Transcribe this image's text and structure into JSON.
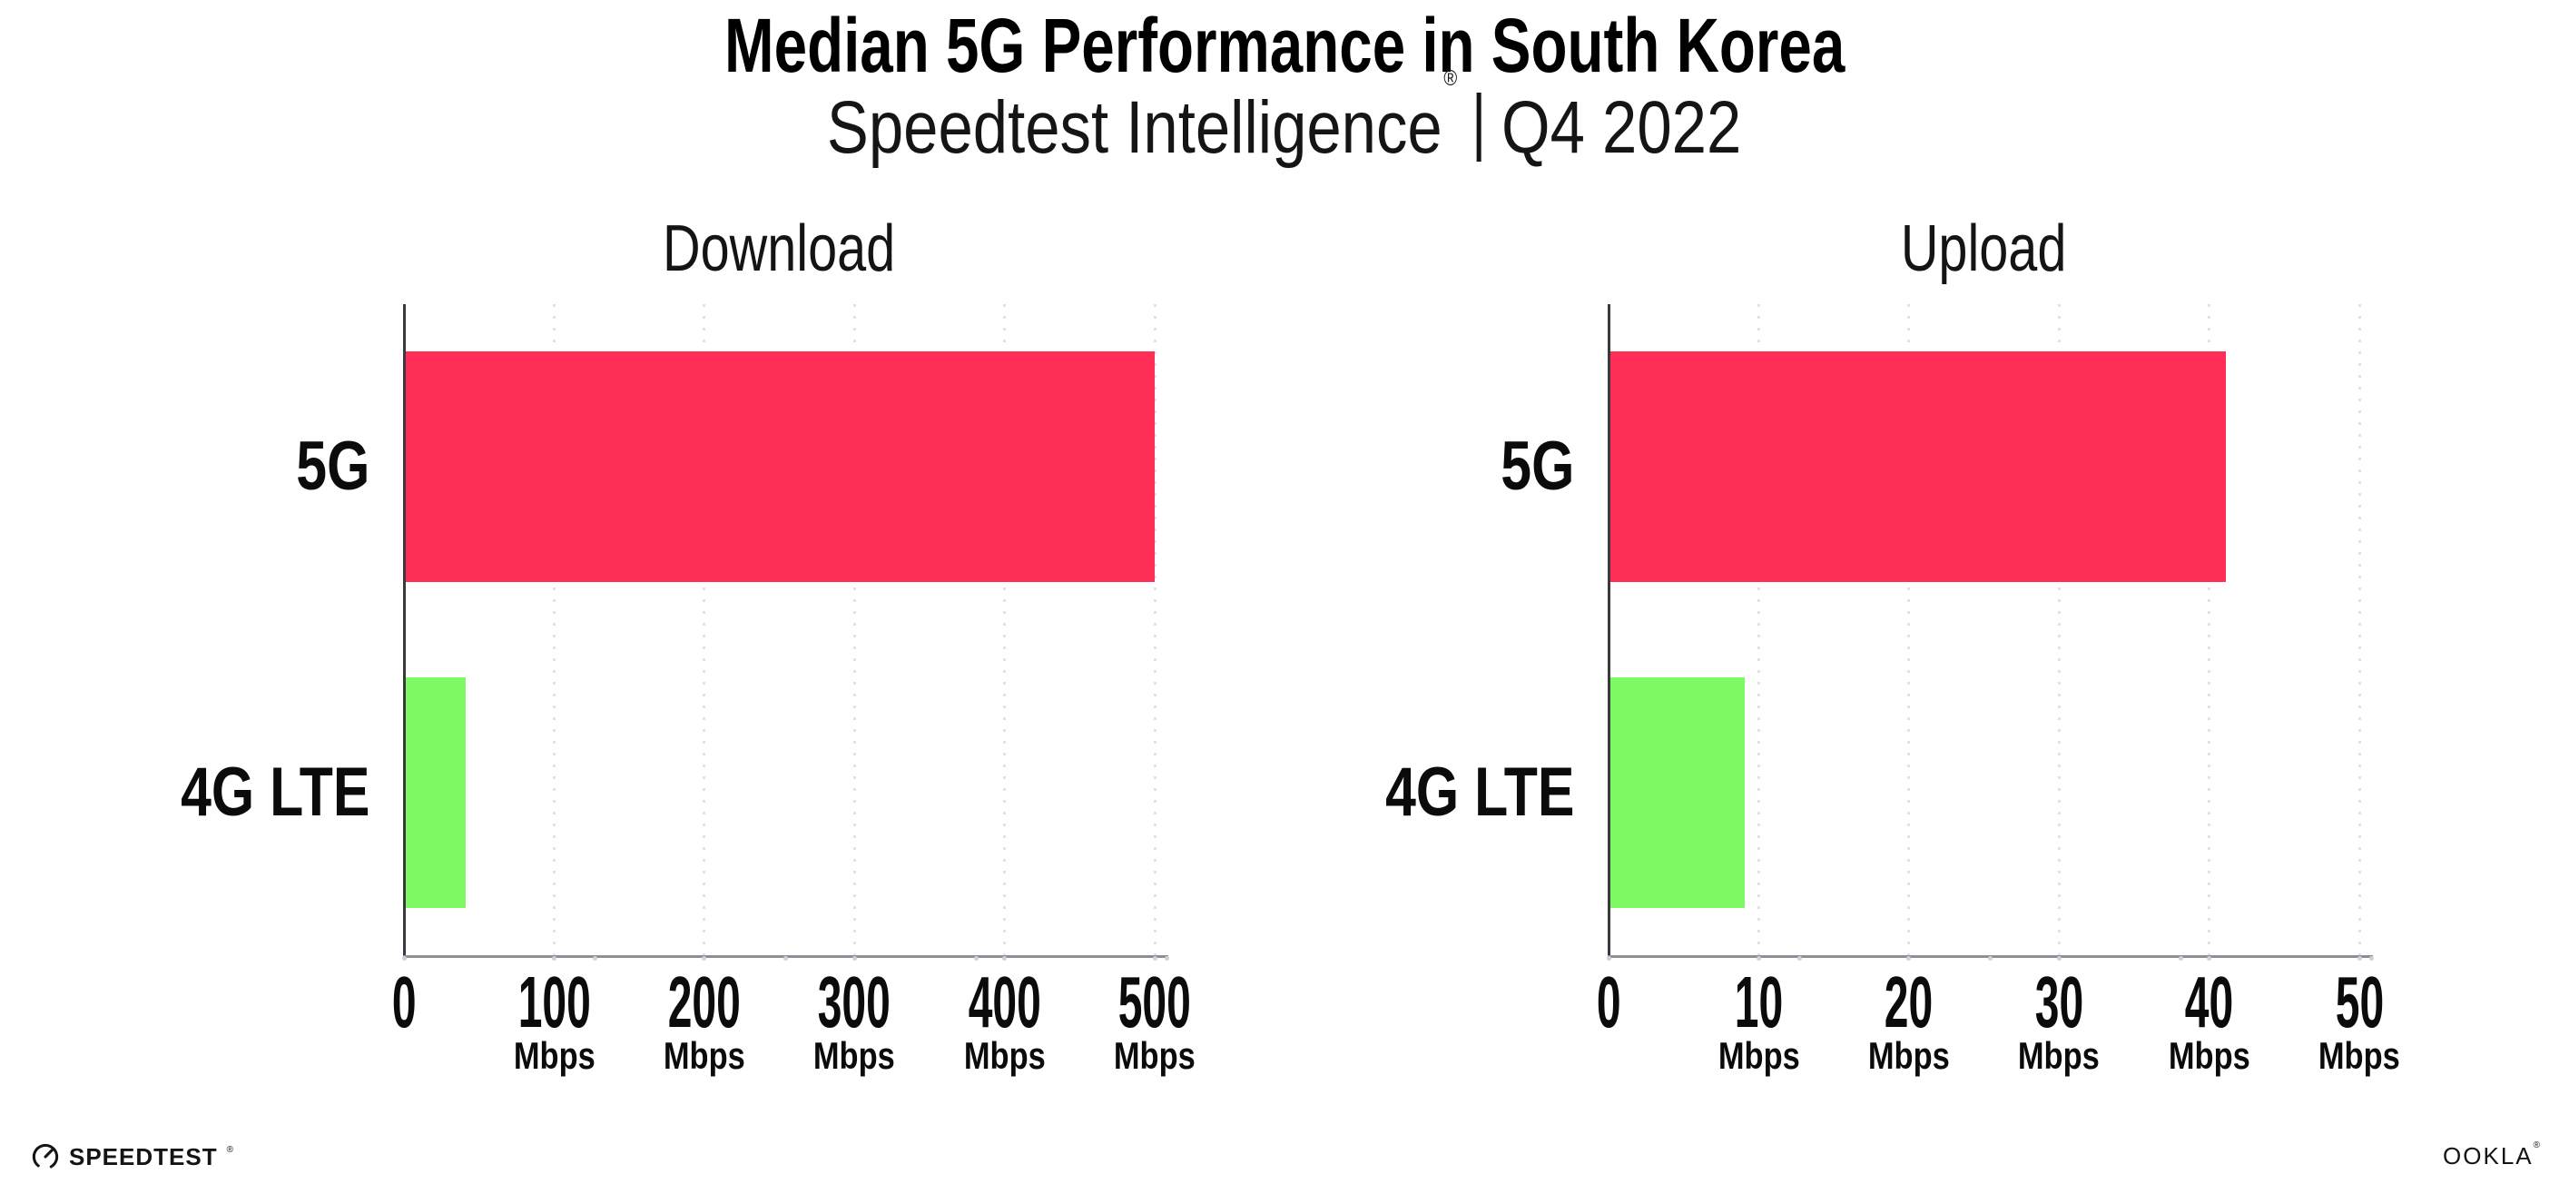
{
  "header": {
    "title": "Median 5G Performance in South Korea",
    "subtitle": {
      "brand": "Speedtest Intelligence",
      "registered_mark": "®",
      "separator": "|",
      "period": "Q4 2022"
    }
  },
  "chart_data": [
    {
      "type": "bar",
      "orientation": "horizontal",
      "title": "Download",
      "categories": [
        "5G",
        "4G LTE"
      ],
      "values": [
        499,
        40
      ],
      "unit": "Mbps",
      "xlim": [
        0,
        500
      ],
      "tick_labels": [
        "0",
        "100",
        "200",
        "300",
        "400",
        "500"
      ],
      "tick_unit": "Mbps",
      "bar_colors": [
        "#ff2e56",
        "#7dfa64"
      ],
      "grid": "dotted vertical gridlines",
      "legend": "none"
    },
    {
      "type": "bar",
      "orientation": "horizontal",
      "title": "Upload",
      "categories": [
        "5G",
        "4G LTE"
      ],
      "values": [
        41,
        9
      ],
      "unit": "Mbps",
      "xlim": [
        0,
        50
      ],
      "tick_labels": [
        "0",
        "10",
        "20",
        "30",
        "40",
        "50"
      ],
      "tick_unit": "Mbps",
      "bar_colors": [
        "#ff2e56",
        "#7dfa64"
      ],
      "grid": "dotted vertical gridlines",
      "legend": "none"
    }
  ],
  "footer": {
    "speedtest_wordmark": "SPEEDTEST",
    "speedtest_registered_mark": "®",
    "ookla_wordmark": "OOKLA",
    "ookla_registered_mark": "®"
  },
  "colors": {
    "bar_5g": "#ff2e56",
    "bar_4g_lte": "#7dfa64",
    "background": "#ffffff",
    "gridline": "#e0e2ee",
    "x_axis": "#8e8e93",
    "y_axis": "#3a3a3e",
    "text": "#0b0b0b"
  }
}
